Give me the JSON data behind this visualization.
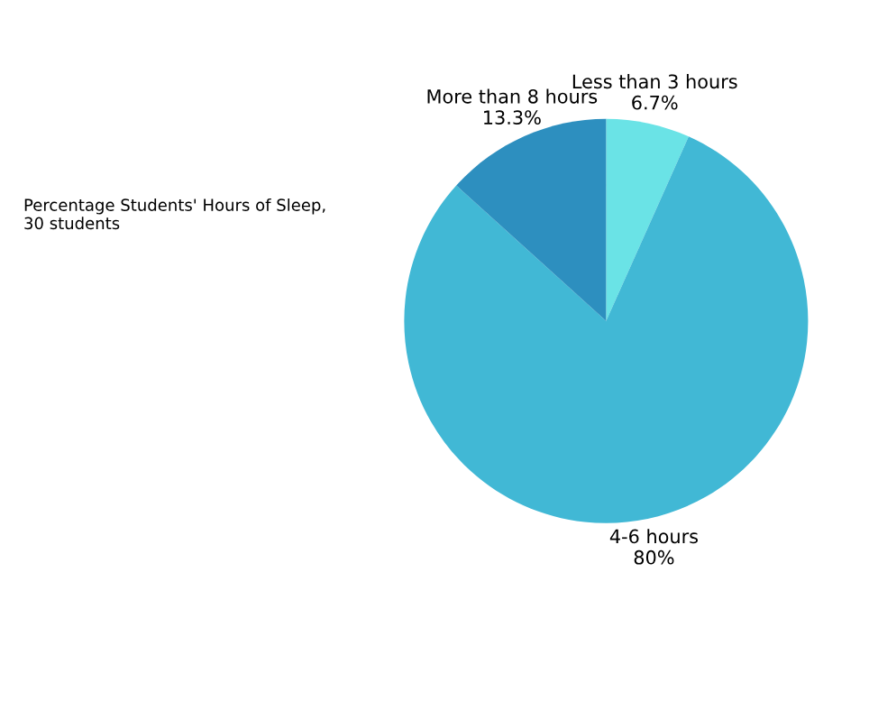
{
  "chart_data": {
    "type": "pie",
    "title": "Percentage Students' Hours of Sleep,\n30 students",
    "categories": [
      "Less than 3 hours",
      "4-6 hours",
      "More than 8 hours"
    ],
    "values": [
      6.7,
      80,
      13.3
    ],
    "value_labels": [
      "6.7%",
      "80%",
      "13.3%"
    ],
    "colors": [
      "#6ae3e6",
      "#41b8d5",
      "#2d8fbf"
    ]
  }
}
